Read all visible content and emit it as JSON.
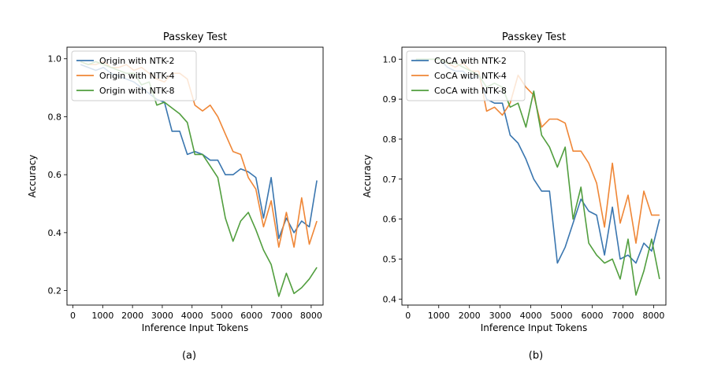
{
  "figure": {
    "captions": [
      "(a)",
      "(b)"
    ]
  },
  "chart_data": [
    {
      "type": "line",
      "title": "Passkey Test",
      "xlabel": "Inference Input Tokens",
      "ylabel": "Accuracy",
      "xlim": [
        -200,
        8400
      ],
      "ylim": [
        0.15,
        1.04
      ],
      "xticks": [
        0,
        1000,
        2000,
        3000,
        4000,
        5000,
        6000,
        7000,
        8000
      ],
      "yticks": [
        0.2,
        0.4,
        0.6,
        0.8,
        1.0
      ],
      "ytick_labels": [
        "0.2",
        "0.4",
        "0.6",
        "0.8",
        "1.0"
      ],
      "legend": "top-left",
      "grid": false,
      "series": [
        {
          "name": "Origin with NTK-2",
          "color": "#3a76af",
          "x": [
            256,
            512,
            768,
            1024,
            1280,
            1536,
            1792,
            2048,
            2304,
            2560,
            2816,
            3072,
            3328,
            3584,
            3840,
            4096,
            4352,
            4608,
            4864,
            5120,
            5376,
            5632,
            5888,
            6144,
            6400,
            6656,
            6912,
            7168,
            7424,
            7680,
            7936,
            8192
          ],
          "y": [
            0.98,
            0.97,
            0.96,
            0.97,
            0.95,
            0.94,
            0.93,
            0.92,
            0.9,
            0.88,
            0.86,
            0.85,
            0.75,
            0.75,
            0.67,
            0.68,
            0.67,
            0.65,
            0.65,
            0.6,
            0.6,
            0.62,
            0.61,
            0.59,
            0.45,
            0.59,
            0.38,
            0.45,
            0.4,
            0.44,
            0.42,
            0.58
          ]
        },
        {
          "name": "Origin with NTK-4",
          "color": "#ef8636",
          "x": [
            256,
            512,
            768,
            1024,
            1280,
            1536,
            1792,
            2048,
            2304,
            2560,
            2816,
            3072,
            3328,
            3584,
            3840,
            4096,
            4352,
            4608,
            4864,
            5120,
            5376,
            5632,
            5888,
            6144,
            6400,
            6656,
            6912,
            7168,
            7424,
            7680,
            7936,
            8192
          ],
          "y": [
            0.99,
            0.98,
            0.98,
            0.99,
            0.97,
            0.97,
            0.98,
            0.96,
            0.97,
            0.95,
            0.93,
            0.92,
            0.95,
            0.95,
            0.93,
            0.84,
            0.82,
            0.84,
            0.8,
            0.74,
            0.68,
            0.67,
            0.59,
            0.55,
            0.42,
            0.51,
            0.35,
            0.47,
            0.35,
            0.52,
            0.36,
            0.44
          ]
        },
        {
          "name": "Origin with NTK-8",
          "color": "#519e3e",
          "x": [
            256,
            512,
            768,
            1024,
            1280,
            1536,
            1792,
            2048,
            2304,
            2560,
            2816,
            3072,
            3328,
            3584,
            3840,
            4096,
            4352,
            4608,
            4864,
            5120,
            5376,
            5632,
            5888,
            6144,
            6400,
            6656,
            6912,
            7168,
            7424,
            7680,
            7936,
            8192
          ],
          "y": [
            0.99,
            0.98,
            0.99,
            0.98,
            0.97,
            0.96,
            0.95,
            0.95,
            0.91,
            0.92,
            0.84,
            0.85,
            0.83,
            0.81,
            0.78,
            0.67,
            0.67,
            0.63,
            0.59,
            0.45,
            0.37,
            0.44,
            0.47,
            0.41,
            0.34,
            0.29,
            0.18,
            0.26,
            0.19,
            0.21,
            0.24,
            0.28
          ]
        }
      ]
    },
    {
      "type": "line",
      "title": "Passkey Test",
      "xlabel": "Inference Input Tokens",
      "ylabel": "Accuracy",
      "xlim": [
        -200,
        8400
      ],
      "ylim": [
        0.385,
        1.03
      ],
      "xticks": [
        0,
        1000,
        2000,
        3000,
        4000,
        5000,
        6000,
        7000,
        8000
      ],
      "yticks": [
        0.4,
        0.5,
        0.6,
        0.7,
        0.8,
        0.9,
        1.0
      ],
      "ytick_labels": [
        "0.4",
        "0.5",
        "0.6",
        "0.7",
        "0.8",
        "0.9",
        "1.0"
      ],
      "legend": "top-left",
      "grid": false,
      "series": [
        {
          "name": "CoCA with NTK-2",
          "color": "#3a76af",
          "x": [
            256,
            512,
            768,
            1024,
            1280,
            1536,
            1792,
            2048,
            2304,
            2560,
            2816,
            3072,
            3328,
            3584,
            3840,
            4096,
            4352,
            4608,
            4864,
            5120,
            5376,
            5632,
            5888,
            6144,
            6400,
            6656,
            6912,
            7168,
            7424,
            7680,
            7936,
            8192
          ],
          "y": [
            1.0,
            1.0,
            1.0,
            1.0,
            0.98,
            0.97,
            0.97,
            0.95,
            0.96,
            0.9,
            0.89,
            0.89,
            0.81,
            0.79,
            0.75,
            0.7,
            0.67,
            0.67,
            0.49,
            0.53,
            0.59,
            0.65,
            0.62,
            0.61,
            0.51,
            0.63,
            0.5,
            0.51,
            0.49,
            0.54,
            0.52,
            0.6
          ]
        },
        {
          "name": "CoCA with NTK-4",
          "color": "#ef8636",
          "x": [
            256,
            512,
            768,
            1024,
            1280,
            1536,
            1792,
            2048,
            2304,
            2560,
            2816,
            3072,
            3328,
            3584,
            3840,
            4096,
            4352,
            4608,
            4864,
            5120,
            5376,
            5632,
            5888,
            6144,
            6400,
            6656,
            6912,
            7168,
            7424,
            7680,
            7936,
            8192
          ],
          "y": [
            1.0,
            1.0,
            1.0,
            1.0,
            0.99,
            0.98,
            0.99,
            0.97,
            0.97,
            0.87,
            0.88,
            0.86,
            0.89,
            0.96,
            0.93,
            0.91,
            0.83,
            0.85,
            0.85,
            0.84,
            0.77,
            0.77,
            0.74,
            0.69,
            0.58,
            0.74,
            0.59,
            0.66,
            0.54,
            0.67,
            0.61,
            0.61
          ]
        },
        {
          "name": "CoCA with NTK-8",
          "color": "#519e3e",
          "x": [
            256,
            512,
            768,
            1024,
            1280,
            1536,
            1792,
            2048,
            2304,
            2560,
            2816,
            3072,
            3328,
            3584,
            3840,
            4096,
            4352,
            4608,
            4864,
            5120,
            5376,
            5632,
            5888,
            6144,
            6400,
            6656,
            6912,
            7168,
            7424,
            7680,
            7936,
            8192
          ],
          "y": [
            1.0,
            1.0,
            1.0,
            1.0,
            0.99,
            0.99,
            0.98,
            0.97,
            0.96,
            0.93,
            0.94,
            0.93,
            0.88,
            0.89,
            0.83,
            0.92,
            0.81,
            0.78,
            0.73,
            0.78,
            0.6,
            0.68,
            0.54,
            0.51,
            0.49,
            0.5,
            0.45,
            0.55,
            0.41,
            0.47,
            0.55,
            0.45
          ]
        }
      ]
    }
  ]
}
